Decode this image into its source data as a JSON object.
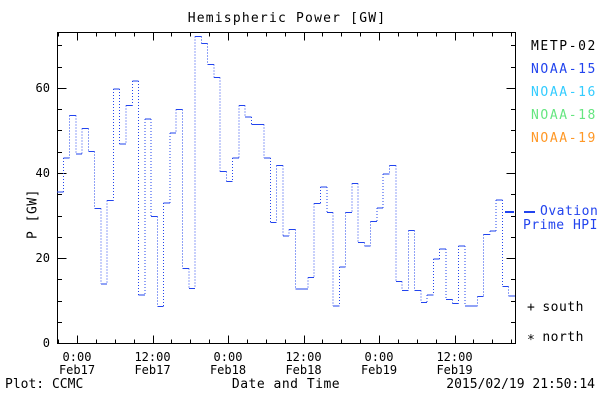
{
  "header": {
    "title": "Hemispheric Power [GW]"
  },
  "footer": {
    "plot_credit": "Plot: CCMC",
    "timestamp": "2015/02/19 21:50:14"
  },
  "legend": {
    "items": [
      {
        "label": "METP-02",
        "color": "#000000"
      },
      {
        "label": "NOAA-15",
        "color": "#2244ee"
      },
      {
        "label": "NOAA-16",
        "color": "#33ccff"
      },
      {
        "label": "NOAA-18",
        "color": "#66e680"
      },
      {
        "label": "NOAA-19",
        "color": "#ff9826"
      }
    ]
  },
  "annotations": {
    "ovation": {
      "line1": "Ovation",
      "line2": "Prime HPI",
      "color": "#2244ee"
    },
    "markers": [
      {
        "glyph": "+",
        "label": "south"
      },
      {
        "glyph": "*",
        "label": "north"
      }
    ]
  },
  "chart_data": {
    "type": "line",
    "subtype": "dotted-step",
    "title": "Hemispheric Power [GW]",
    "xlabel": "Date and Time",
    "ylabel": "P [GW]",
    "ylim": [
      0,
      73
    ],
    "grid": false,
    "legend_position": "right-outside",
    "y_major_ticks": [
      0,
      20,
      40,
      60
    ],
    "y_minor_step_gw": 5,
    "x_minor_step_hours": 3,
    "x_ticks": [
      {
        "time": "0:00",
        "date": "Feb17"
      },
      {
        "time": "12:00",
        "date": "Feb17"
      },
      {
        "time": "0:00",
        "date": "Feb18"
      },
      {
        "time": "12:00",
        "date": "Feb18"
      },
      {
        "time": "0:00",
        "date": "Feb19"
      },
      {
        "time": "12:00",
        "date": "Feb19"
      }
    ],
    "series": [
      {
        "name": "NOAA-15 Ovation Prime HPI",
        "color": "#2244ee",
        "unit": "GW",
        "start": "2015-02-16 ~21:00",
        "end": "2015-02-19 ~21:40",
        "step_hours": 1,
        "values": [
          35.5,
          43.5,
          53.5,
          44.5,
          50.4,
          45.1,
          31.6,
          13.9,
          33.5,
          59.7,
          46.8,
          55.9,
          61.6,
          11.4,
          52.7,
          29.8,
          8.6,
          32.9,
          49.4,
          54.9,
          17.6,
          12.9,
          72.1,
          70.4,
          65.5,
          62.4,
          40.4,
          38.0,
          43.5,
          55.8,
          53.2,
          51.4,
          51.4,
          43.5,
          28.4,
          41.7,
          25.2,
          26.7,
          12.7,
          12.7,
          15.5,
          32.8,
          36.7,
          30.7,
          8.8,
          17.9,
          30.7,
          37.5,
          23.7,
          22.9,
          28.6,
          31.8,
          39.8,
          41.8,
          14.5,
          12.4,
          26.5,
          12.4,
          9.6,
          11.3,
          19.8,
          22.1,
          10.3,
          9.4,
          22.9,
          8.8,
          8.8,
          11.0,
          25.5,
          26.4,
          33.6,
          13.3,
          11.1
        ]
      }
    ]
  }
}
